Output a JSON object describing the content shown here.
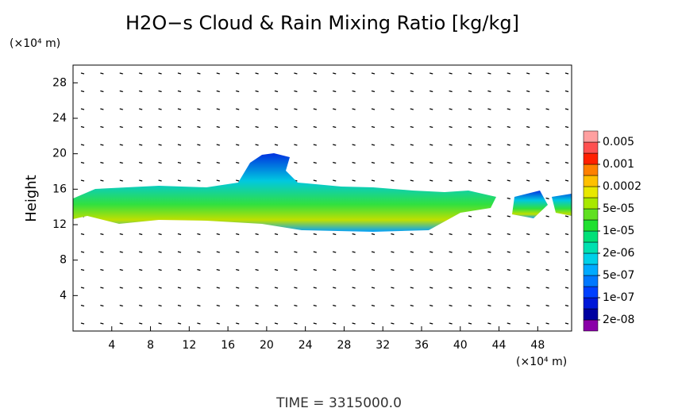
{
  "chart_data": {
    "type": "contour",
    "title": "H2O−s Cloud & Rain Mixing Ratio [kg/kg]",
    "y_unit": "(×10⁴ m)",
    "x_unit": "(×10⁴ m)",
    "ylabel": "Height",
    "footer": "TIME = 3315000.0",
    "xlim": [
      0,
      51.5
    ],
    "xticks": [
      4,
      8,
      12,
      16,
      20,
      24,
      28,
      32,
      36,
      40,
      44,
      48
    ],
    "ylim": [
      0,
      30
    ],
    "yticks": [
      4,
      8,
      12,
      16,
      20,
      24,
      28
    ],
    "colorbar": {
      "levels": [
        {
          "value": 2e-08,
          "label": "2e-08"
        },
        {
          "value": 1e-07,
          "label": "1e-07"
        },
        {
          "value": 5e-07,
          "label": "5e-07"
        },
        {
          "value": 2e-06,
          "label": "2e-06"
        },
        {
          "value": 1e-05,
          "label": "1e-05"
        },
        {
          "value": 5e-05,
          "label": "5e-05"
        },
        0.0002,
        0.001,
        0.005
      ],
      "colors": [
        "#8a00a8",
        "#0000a0",
        "#0018d8",
        "#0040ff",
        "#0078ff",
        "#00aaff",
        "#00d0e8",
        "#00e0b0",
        "#00e078",
        "#20e030",
        "#60e020",
        "#a8e800",
        "#e8e800",
        "#ffc000",
        "#ff8000",
        "#ff2000",
        "#ff5050",
        "#ffa0a0"
      ]
    }
  }
}
